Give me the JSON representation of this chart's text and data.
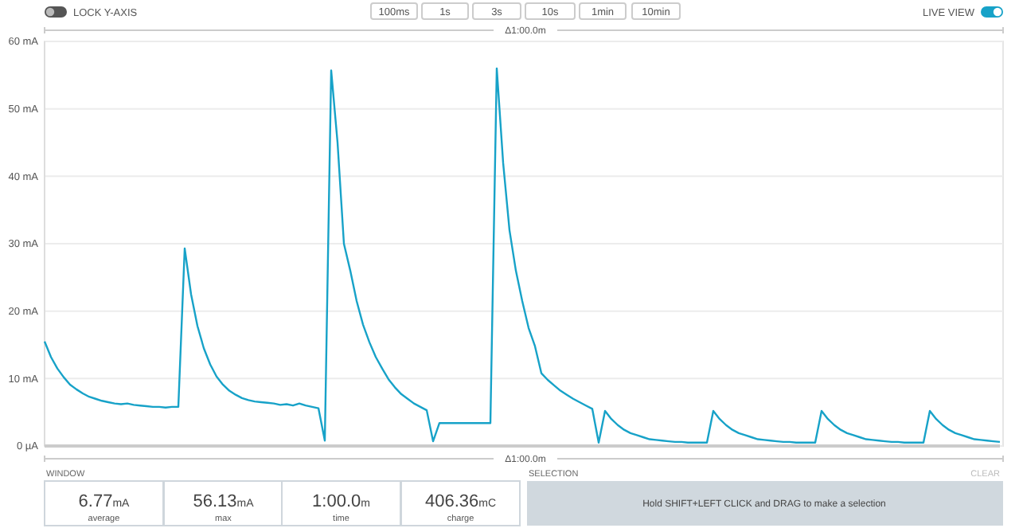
{
  "chart_data": {
    "type": "line",
    "categories": [
      null,
      null,
      null,
      null,
      null,
      null,
      null,
      null,
      null,
      null,
      null,
      null,
      null,
      null,
      null,
      null,
      null,
      null,
      null,
      null,
      null,
      null,
      null,
      null,
      null,
      null,
      null,
      null,
      null,
      null,
      null,
      null,
      null,
      null,
      null,
      null,
      null,
      null,
      null,
      null,
      null,
      null,
      null,
      null,
      null,
      null,
      null,
      null,
      null,
      null,
      null,
      null,
      null,
      null,
      null,
      null,
      null,
      null,
      null,
      null,
      null,
      null,
      null,
      null,
      null,
      null,
      null,
      null,
      null,
      null,
      null,
      null,
      null,
      null,
      null,
      null,
      null,
      null,
      null,
      null,
      null,
      null,
      null,
      null,
      null,
      null,
      null,
      null,
      null,
      null,
      null,
      null,
      null,
      null,
      null,
      null,
      null,
      null,
      null,
      null,
      null,
      null,
      null,
      null,
      null,
      null,
      null,
      null,
      null,
      null,
      null,
      null,
      null,
      null,
      null,
      null,
      null,
      null,
      null,
      null,
      null,
      null,
      null,
      null,
      null,
      null,
      null,
      null,
      null,
      null,
      null,
      null,
      null,
      null,
      null,
      null,
      null,
      null,
      null,
      null,
      null,
      null,
      null,
      null,
      null,
      null,
      null,
      null,
      null,
      null,
      null
    ],
    "series": [
      {
        "color": "#17a2c8",
        "values": [
          15.5,
          13.2,
          11.5,
          10.2,
          9.1,
          8.4,
          7.8,
          7.3,
          7.0,
          6.7,
          6.5,
          6.3,
          6.2,
          6.3,
          6.1,
          6.0,
          5.9,
          5.8,
          5.8,
          5.7,
          5.8,
          5.8,
          29.3,
          22.5,
          17.8,
          14.5,
          12.1,
          10.3,
          9.1,
          8.2,
          7.6,
          7.1,
          6.8,
          6.6,
          6.5,
          6.4,
          6.3,
          6.1,
          6.2,
          6.0,
          6.3,
          6.0,
          5.8,
          5.6,
          0.8,
          55.7,
          45,
          30,
          26,
          21.5,
          18,
          15.4,
          13.2,
          11.5,
          9.9,
          8.7,
          7.7,
          7.0,
          6.3,
          5.8,
          5.3,
          0.7,
          3.4,
          3.4,
          3.4,
          3.4,
          3.4,
          3.4,
          3.4,
          3.4,
          3.4,
          56.0,
          42,
          32,
          26,
          21.5,
          17.5,
          14.8,
          10.8,
          9.8,
          9.0,
          8.2,
          7.6,
          7.0,
          6.5,
          6.0,
          5.5,
          0.5,
          5.2,
          4.0,
          3.1,
          2.4,
          1.9,
          1.6,
          1.3,
          1.0,
          0.9,
          0.8,
          0.7,
          0.6,
          0.6,
          0.5,
          0.5,
          0.5,
          0.5,
          5.2,
          4.0,
          3.1,
          2.4,
          1.9,
          1.6,
          1.3,
          1.0,
          0.9,
          0.8,
          0.7,
          0.6,
          0.6,
          0.5,
          0.5,
          0.5,
          0.5,
          5.2,
          4.0,
          3.1,
          2.4,
          1.9,
          1.6,
          1.3,
          1.0,
          0.9,
          0.8,
          0.7,
          0.6,
          0.6,
          0.5,
          0.5,
          0.5,
          0.5,
          5.2,
          4.0,
          3.1,
          2.4,
          1.9,
          1.6,
          1.3,
          1.0,
          0.9,
          0.8,
          0.7,
          0.6
        ]
      }
    ],
    "ylim": [
      0,
      60
    ],
    "yticks": [
      {
        "value": 0,
        "label": "0 µA"
      },
      {
        "value": 10,
        "label": "10 mA"
      },
      {
        "value": 20,
        "label": "20 mA"
      },
      {
        "value": 30,
        "label": "30 mA"
      },
      {
        "value": 40,
        "label": "40 mA"
      },
      {
        "value": 50,
        "label": "50 mA"
      },
      {
        "value": 60,
        "label": "60 mA"
      }
    ],
    "grid": "y",
    "marker": "none",
    "line_style": "solid",
    "annotations": [
      "LOCK Y-AXIS",
      "100ms",
      "1s",
      "3s",
      "10s",
      "1min",
      "10min",
      "LIVE VIEW",
      "Δ1:00.0m",
      "Δ1:00.0m",
      "WINDOW",
      "6.77",
      "mA",
      "average",
      "56.13",
      "mA",
      "max",
      "1:00.0",
      "m",
      "time",
      "406.36",
      "mC",
      "charge",
      "SELECTION",
      "CLEAR",
      "Hold SHIFT+LEFT CLICK and DRAG to make a selection"
    ]
  }
}
